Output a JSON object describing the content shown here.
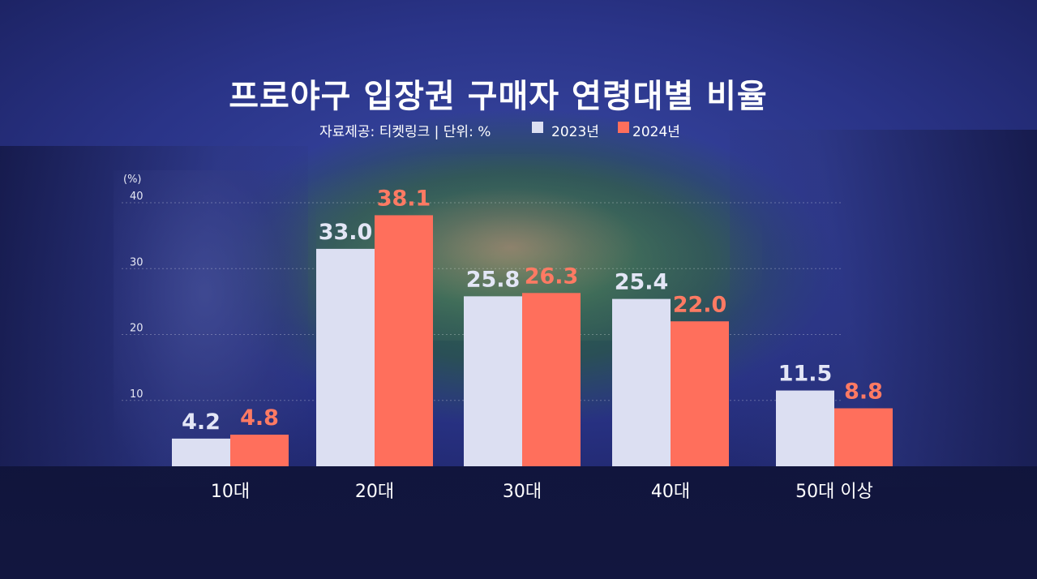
{
  "title": "프로야구 입장권 구매자 연령대별 비율",
  "source": "자료제공: 티켓링크 | 단위: %",
  "colors": {
    "series_2023": "#dcdff2",
    "series_2024": "#ff6f5c",
    "label_2023": "#e3e6f6",
    "label_2024": "#ff7a63"
  },
  "chart_data": {
    "type": "bar",
    "title": "프로야구 입장권 구매자 연령대별 비율",
    "categories": [
      "10대",
      "20대",
      "30대",
      "40대",
      "50대 이상"
    ],
    "series": [
      {
        "name": "2023년",
        "values": [
          4.2,
          33.0,
          25.8,
          25.4,
          11.5
        ]
      },
      {
        "name": "2024년",
        "values": [
          4.8,
          38.1,
          26.3,
          22.0,
          8.8
        ]
      }
    ],
    "value_labels": [
      [
        "4.2",
        "33.0",
        "25.8",
        "25.4",
        "11.5"
      ],
      [
        "4.8",
        "38.1",
        "26.3",
        "22.0",
        "8.8"
      ]
    ],
    "y_unit": "(%)",
    "yticks": [
      "40",
      "30",
      "20",
      "10"
    ],
    "ylim": [
      0,
      40
    ],
    "grid": true,
    "legend_position": "top"
  }
}
